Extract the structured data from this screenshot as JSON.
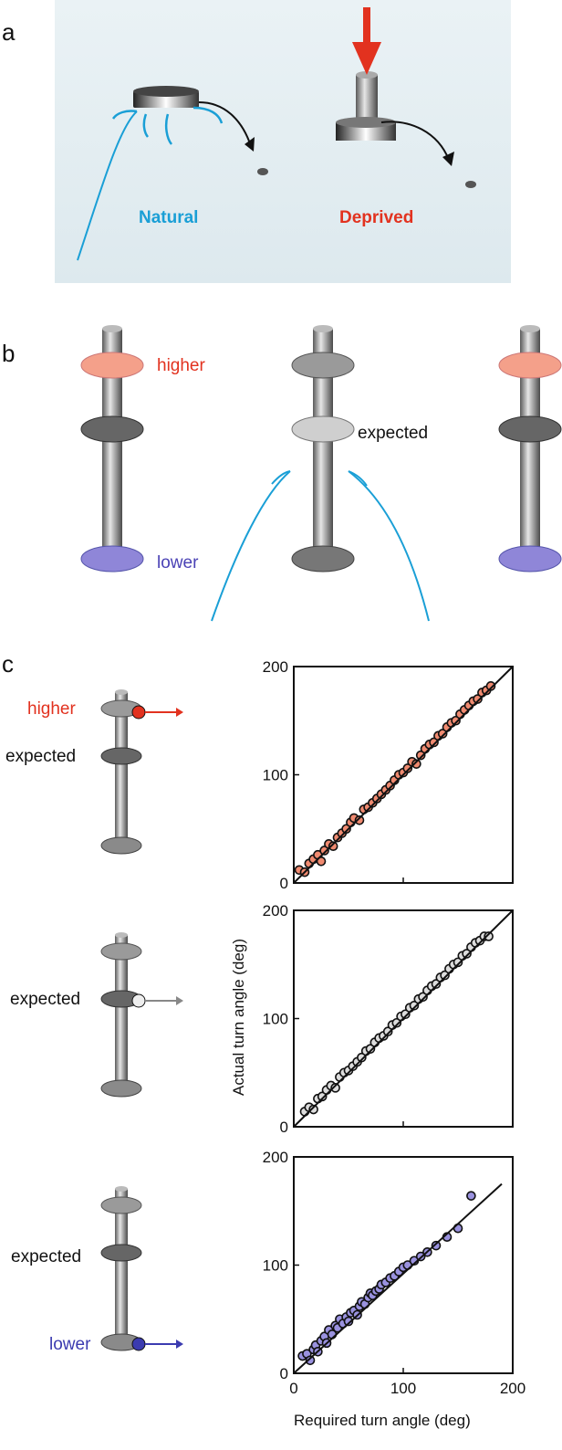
{
  "panel_a": {
    "letter": "a",
    "label_left": "Natural",
    "label_right": "Deprived",
    "colors": {
      "natural": "#1a9fd6",
      "deprived": "#e2321f",
      "background": "#e8f1f4"
    }
  },
  "panel_b": {
    "letter": "b",
    "label_higher": "higher",
    "label_expected": "expected",
    "label_lower": "lower",
    "colors": {
      "higher": "#f4a08a",
      "lower": "#8f86d8",
      "water": "#1a9fd6"
    }
  },
  "panel_c": {
    "letter": "c",
    "rows": [
      {
        "label_top": "higher",
        "label_mid": "expected"
      },
      {
        "label_mid": "expected"
      },
      {
        "label_mid": "expected",
        "label_bottom": "lower"
      }
    ],
    "colors": {
      "higher": "#e2321f",
      "expected": "#999999",
      "lower": "#3b3bb0"
    }
  },
  "chart_data": [
    {
      "type": "scatter",
      "marker_color": "#f08a70",
      "xlim": [
        0,
        200
      ],
      "ylim": [
        0,
        200
      ],
      "yticks": [
        "0",
        "100",
        "200"
      ],
      "fit": [
        [
          0,
          0
        ],
        [
          200,
          200
        ]
      ],
      "points": [
        [
          5,
          12
        ],
        [
          10,
          10
        ],
        [
          14,
          18
        ],
        [
          18,
          22
        ],
        [
          22,
          26
        ],
        [
          25,
          20
        ],
        [
          28,
          30
        ],
        [
          32,
          36
        ],
        [
          36,
          34
        ],
        [
          40,
          42
        ],
        [
          44,
          46
        ],
        [
          48,
          50
        ],
        [
          52,
          56
        ],
        [
          55,
          60
        ],
        [
          60,
          58
        ],
        [
          64,
          68
        ],
        [
          68,
          70
        ],
        [
          72,
          74
        ],
        [
          76,
          78
        ],
        [
          80,
          82
        ],
        [
          84,
          86
        ],
        [
          88,
          90
        ],
        [
          92,
          95
        ],
        [
          96,
          100
        ],
        [
          100,
          102
        ],
        [
          104,
          106
        ],
        [
          108,
          112
        ],
        [
          112,
          110
        ],
        [
          116,
          118
        ],
        [
          120,
          124
        ],
        [
          124,
          128
        ],
        [
          128,
          130
        ],
        [
          132,
          136
        ],
        [
          136,
          138
        ],
        [
          140,
          144
        ],
        [
          144,
          148
        ],
        [
          148,
          150
        ],
        [
          152,
          156
        ],
        [
          156,
          160
        ],
        [
          160,
          164
        ],
        [
          164,
          168
        ],
        [
          168,
          170
        ],
        [
          172,
          176
        ],
        [
          176,
          178
        ],
        [
          180,
          182
        ]
      ]
    },
    {
      "type": "scatter",
      "marker_color": "#dddddd",
      "xlim": [
        0,
        200
      ],
      "ylim": [
        0,
        200
      ],
      "yticks": [
        "0",
        "100",
        "200"
      ],
      "ylabel": "Actual turn angle (deg)",
      "fit": [
        [
          0,
          0
        ],
        [
          200,
          200
        ]
      ],
      "points": [
        [
          10,
          14
        ],
        [
          14,
          18
        ],
        [
          18,
          16
        ],
        [
          22,
          26
        ],
        [
          26,
          28
        ],
        [
          30,
          34
        ],
        [
          34,
          38
        ],
        [
          38,
          36
        ],
        [
          42,
          46
        ],
        [
          46,
          50
        ],
        [
          50,
          52
        ],
        [
          54,
          56
        ],
        [
          58,
          60
        ],
        [
          62,
          64
        ],
        [
          66,
          70
        ],
        [
          70,
          72
        ],
        [
          74,
          78
        ],
        [
          78,
          82
        ],
        [
          82,
          84
        ],
        [
          86,
          88
        ],
        [
          90,
          94
        ],
        [
          94,
          96
        ],
        [
          98,
          102
        ],
        [
          102,
          104
        ],
        [
          106,
          110
        ],
        [
          110,
          112
        ],
        [
          114,
          118
        ],
        [
          118,
          120
        ],
        [
          122,
          126
        ],
        [
          126,
          130
        ],
        [
          130,
          132
        ],
        [
          134,
          138
        ],
        [
          138,
          140
        ],
        [
          142,
          146
        ],
        [
          146,
          150
        ],
        [
          150,
          152
        ],
        [
          154,
          158
        ],
        [
          158,
          160
        ],
        [
          162,
          166
        ],
        [
          166,
          170
        ],
        [
          170,
          172
        ],
        [
          174,
          176
        ],
        [
          178,
          176
        ]
      ]
    },
    {
      "type": "scatter",
      "marker_color": "#9a92df",
      "xlim": [
        0,
        200
      ],
      "ylim": [
        0,
        200
      ],
      "xticks": [
        "0",
        "100",
        "200"
      ],
      "yticks": [
        "0",
        "100",
        "200"
      ],
      "xlabel": "Required turn angle (deg)",
      "fit": [
        [
          0,
          0
        ],
        [
          190,
          175
        ]
      ],
      "points": [
        [
          8,
          16
        ],
        [
          12,
          18
        ],
        [
          15,
          12
        ],
        [
          18,
          22
        ],
        [
          20,
          26
        ],
        [
          22,
          20
        ],
        [
          25,
          30
        ],
        [
          28,
          34
        ],
        [
          30,
          28
        ],
        [
          32,
          40
        ],
        [
          35,
          36
        ],
        [
          38,
          44
        ],
        [
          40,
          42
        ],
        [
          42,
          50
        ],
        [
          45,
          46
        ],
        [
          48,
          52
        ],
        [
          50,
          48
        ],
        [
          52,
          56
        ],
        [
          55,
          58
        ],
        [
          58,
          54
        ],
        [
          60,
          62
        ],
        [
          62,
          66
        ],
        [
          65,
          64
        ],
        [
          68,
          70
        ],
        [
          70,
          74
        ],
        [
          72,
          72
        ],
        [
          75,
          76
        ],
        [
          78,
          78
        ],
        [
          80,
          82
        ],
        [
          84,
          84
        ],
        [
          88,
          88
        ],
        [
          92,
          90
        ],
        [
          96,
          94
        ],
        [
          100,
          98
        ],
        [
          104,
          100
        ],
        [
          110,
          104
        ],
        [
          116,
          108
        ],
        [
          122,
          112
        ],
        [
          130,
          118
        ],
        [
          140,
          126
        ],
        [
          150,
          134
        ],
        [
          162,
          164
        ]
      ]
    }
  ]
}
